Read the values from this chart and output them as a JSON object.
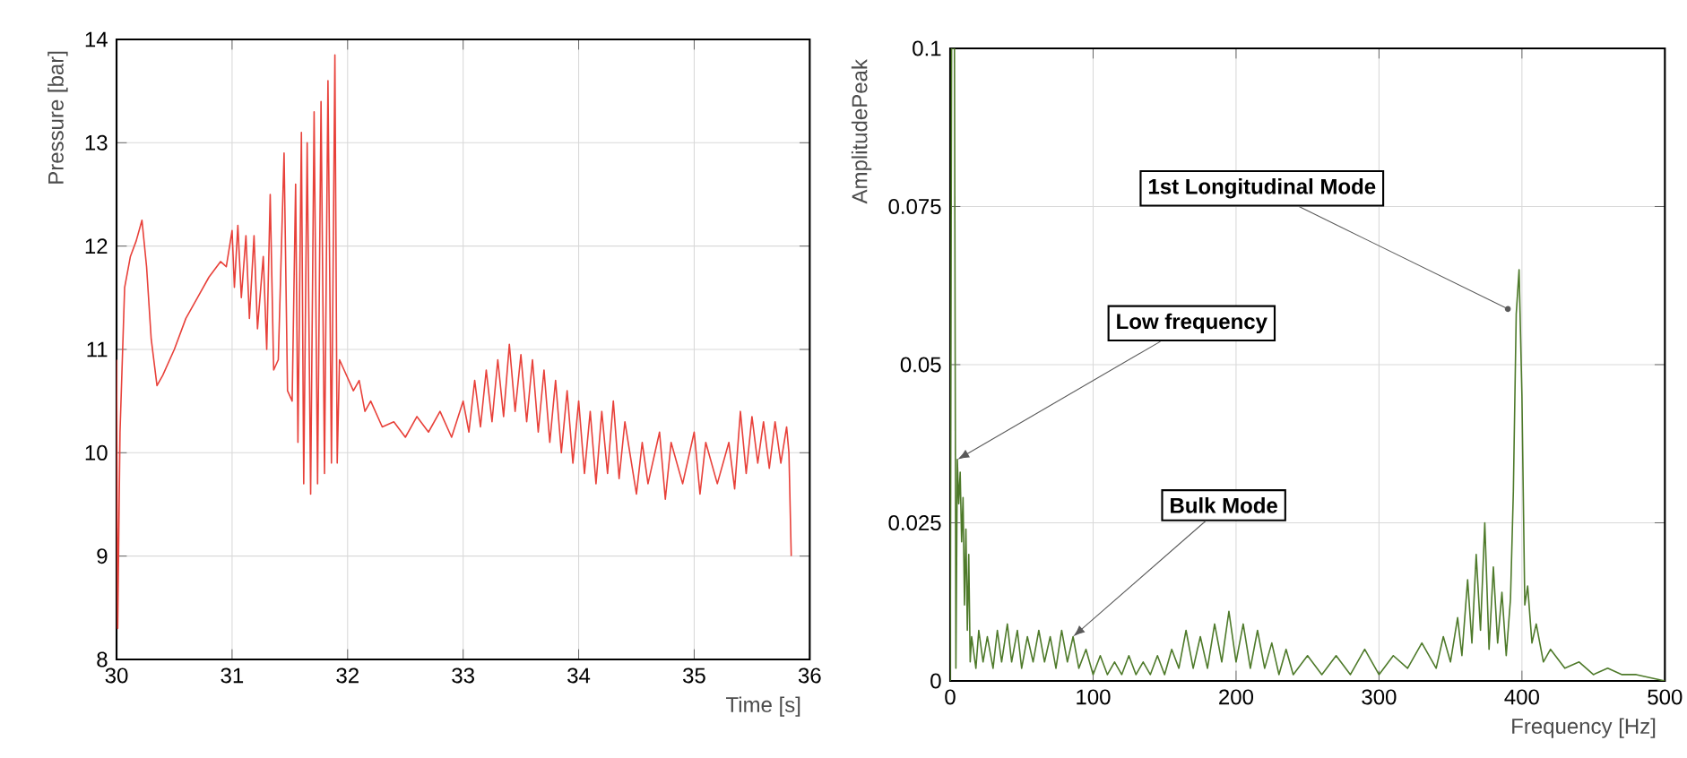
{
  "chart_data": [
    {
      "type": "line",
      "xlabel": "Time [s]",
      "ylabel": "Pressure [bar]",
      "xlim": [
        30,
        36
      ],
      "ylim": [
        8,
        14
      ],
      "xticks": [
        30,
        31,
        32,
        33,
        34,
        35,
        36
      ],
      "yticks": [
        8,
        9,
        10,
        11,
        12,
        13,
        14
      ],
      "grid": true,
      "series": [
        {
          "color": "#e8413a",
          "x": [
            30.0,
            30.01,
            30.03,
            30.07,
            30.12,
            30.17,
            30.22,
            30.26,
            30.3,
            30.35,
            30.4,
            30.5,
            30.6,
            30.7,
            30.8,
            30.9,
            30.95,
            31.0,
            31.02,
            31.05,
            31.08,
            31.12,
            31.15,
            31.19,
            31.22,
            31.27,
            31.3,
            31.33,
            31.36,
            31.4,
            31.45,
            31.48,
            31.52,
            31.55,
            31.57,
            31.6,
            31.62,
            31.65,
            31.68,
            31.71,
            31.74,
            31.77,
            31.8,
            31.83,
            31.86,
            31.89,
            31.91,
            31.93,
            31.97,
            32.05,
            32.1,
            32.15,
            32.2,
            32.3,
            32.4,
            32.5,
            32.6,
            32.7,
            32.8,
            32.9,
            33.0,
            33.05,
            33.1,
            33.15,
            33.2,
            33.25,
            33.3,
            33.35,
            33.4,
            33.45,
            33.5,
            33.55,
            33.6,
            33.65,
            33.7,
            33.75,
            33.8,
            33.85,
            33.9,
            33.95,
            34.0,
            34.05,
            34.1,
            34.15,
            34.2,
            34.25,
            34.3,
            34.35,
            34.4,
            34.5,
            34.55,
            34.6,
            34.7,
            34.75,
            34.8,
            34.9,
            35.0,
            35.05,
            35.1,
            35.2,
            35.3,
            35.35,
            35.4,
            35.45,
            35.5,
            35.55,
            35.6,
            35.65,
            35.7,
            35.75,
            35.8,
            35.82,
            35.84
          ],
          "values": [
            10.9,
            8.3,
            10.2,
            11.6,
            11.9,
            12.05,
            12.25,
            11.8,
            11.1,
            10.65,
            10.75,
            11.0,
            11.3,
            11.5,
            11.7,
            11.85,
            11.8,
            12.15,
            11.6,
            12.2,
            11.5,
            12.1,
            11.3,
            12.1,
            11.2,
            11.9,
            11.0,
            12.5,
            10.8,
            10.9,
            12.9,
            10.6,
            10.5,
            12.6,
            10.1,
            13.1,
            9.7,
            13.0,
            9.6,
            13.3,
            9.7,
            13.4,
            9.8,
            13.6,
            9.9,
            13.85,
            9.9,
            10.9,
            10.8,
            10.6,
            10.7,
            10.4,
            10.5,
            10.25,
            10.3,
            10.15,
            10.35,
            10.2,
            10.4,
            10.15,
            10.5,
            10.2,
            10.7,
            10.25,
            10.8,
            10.3,
            10.9,
            10.35,
            11.05,
            10.4,
            10.95,
            10.3,
            10.9,
            10.2,
            10.8,
            10.1,
            10.7,
            10.0,
            10.6,
            9.9,
            10.5,
            9.8,
            10.4,
            9.7,
            10.4,
            9.8,
            10.5,
            9.75,
            10.3,
            9.6,
            10.1,
            9.7,
            10.2,
            9.55,
            10.1,
            9.7,
            10.2,
            9.6,
            10.1,
            9.7,
            10.1,
            9.65,
            10.4,
            9.8,
            10.35,
            9.9,
            10.3,
            9.85,
            10.3,
            9.9,
            10.25,
            10.0,
            9.0
          ]
        }
      ]
    },
    {
      "type": "line",
      "xlabel": "Frequency [Hz]",
      "ylabel": "AmplitudePeak",
      "xlim": [
        0,
        500
      ],
      "ylim": [
        0,
        0.1
      ],
      "xticks": [
        0,
        100,
        200,
        300,
        400,
        500
      ],
      "yticks": [
        0,
        0.025,
        0.05,
        0.075,
        0.1
      ],
      "grid": true,
      "annotations": [
        {
          "text": "1st Longitudinal Mode",
          "x": 392,
          "y": 0.0586
        },
        {
          "text": "Low frequency",
          "x": 5,
          "y": 0.035
        },
        {
          "text": "Bulk Mode",
          "x": 86,
          "y": 0.007
        }
      ],
      "series": [
        {
          "color": "#4e7a2a",
          "x": [
            0,
            1,
            3,
            4,
            5,
            6,
            7,
            8,
            9,
            10,
            11,
            12,
            13,
            14,
            15,
            18,
            20,
            23,
            26,
            30,
            33,
            36,
            40,
            43,
            47,
            50,
            54,
            58,
            62,
            66,
            70,
            74,
            78,
            82,
            86,
            90,
            95,
            100,
            105,
            110,
            115,
            120,
            125,
            130,
            135,
            140,
            145,
            150,
            155,
            160,
            165,
            170,
            175,
            180,
            185,
            190,
            195,
            200,
            205,
            210,
            215,
            220,
            225,
            230,
            235,
            240,
            250,
            260,
            270,
            280,
            290,
            300,
            310,
            320,
            330,
            340,
            345,
            350,
            355,
            358,
            362,
            365,
            368,
            371,
            374,
            377,
            380,
            383,
            386,
            389,
            392,
            394,
            396,
            398,
            400,
            402,
            404,
            407,
            410,
            415,
            420,
            430,
            440,
            450,
            460,
            470,
            480,
            490,
            500
          ],
          "values": [
            0.0,
            0.1,
            0.1,
            0.002,
            0.035,
            0.028,
            0.033,
            0.022,
            0.029,
            0.012,
            0.024,
            0.008,
            0.02,
            0.003,
            0.007,
            0.002,
            0.008,
            0.003,
            0.007,
            0.002,
            0.008,
            0.003,
            0.009,
            0.003,
            0.008,
            0.002,
            0.007,
            0.003,
            0.008,
            0.003,
            0.007,
            0.002,
            0.008,
            0.003,
            0.007,
            0.002,
            0.005,
            0.001,
            0.004,
            0.001,
            0.003,
            0.001,
            0.004,
            0.001,
            0.003,
            0.001,
            0.004,
            0.001,
            0.005,
            0.002,
            0.008,
            0.002,
            0.007,
            0.002,
            0.009,
            0.003,
            0.011,
            0.003,
            0.009,
            0.002,
            0.008,
            0.002,
            0.006,
            0.001,
            0.005,
            0.001,
            0.004,
            0.001,
            0.004,
            0.001,
            0.005,
            0.001,
            0.004,
            0.002,
            0.006,
            0.002,
            0.007,
            0.003,
            0.01,
            0.004,
            0.016,
            0.006,
            0.02,
            0.008,
            0.025,
            0.005,
            0.018,
            0.006,
            0.014,
            0.004,
            0.013,
            0.03,
            0.058,
            0.065,
            0.045,
            0.012,
            0.015,
            0.006,
            0.009,
            0.003,
            0.005,
            0.002,
            0.003,
            0.001,
            0.002,
            0.001,
            0.001,
            0.0005,
            0.0
          ]
        }
      ]
    }
  ]
}
